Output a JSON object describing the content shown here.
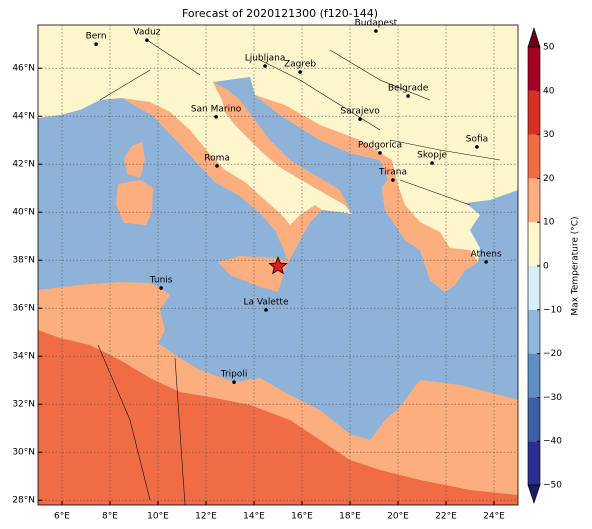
{
  "map": {
    "title": "Forecast of 2020121300 (f120-144)",
    "xlim": [
      5,
      25
    ],
    "ylim": [
      27.8,
      47.8
    ],
    "xticks": [
      {
        "value": 6,
        "label": "6°E"
      },
      {
        "value": 8,
        "label": "8°E"
      },
      {
        "value": 10,
        "label": "10°E"
      },
      {
        "value": 12,
        "label": "12°E"
      },
      {
        "value": 14,
        "label": "14°E"
      },
      {
        "value": 16,
        "label": "16°E"
      },
      {
        "value": 18,
        "label": "18°E"
      },
      {
        "value": 20,
        "label": "20°E"
      },
      {
        "value": 22,
        "label": "22°E"
      },
      {
        "value": 24,
        "label": "24°E"
      }
    ],
    "yticks": [
      {
        "value": 28,
        "label": "28°N"
      },
      {
        "value": 30,
        "label": "30°N"
      },
      {
        "value": 32,
        "label": "32°N"
      },
      {
        "value": 34,
        "label": "34°N"
      },
      {
        "value": 36,
        "label": "36°N"
      },
      {
        "value": 38,
        "label": "38°N"
      },
      {
        "value": 40,
        "label": "40°N"
      },
      {
        "value": 42,
        "label": "42°N"
      },
      {
        "value": 44,
        "label": "44°N"
      },
      {
        "value": 46,
        "label": "46°N"
      }
    ],
    "grid": true,
    "cities": [
      {
        "name": "Bern",
        "lon": 7.42,
        "lat": 47.0
      },
      {
        "name": "Vaduz",
        "lon": 9.54,
        "lat": 47.17
      },
      {
        "name": "Budapest",
        "lon": 19.08,
        "lat": 47.55
      },
      {
        "name": "Ljubljana",
        "lon": 14.46,
        "lat": 46.09
      },
      {
        "name": "Zagreb",
        "lon": 15.92,
        "lat": 45.84
      },
      {
        "name": "Belgrade",
        "lon": 20.42,
        "lat": 44.84
      },
      {
        "name": "San Marino",
        "lon": 12.42,
        "lat": 43.97
      },
      {
        "name": "Sarajevo",
        "lon": 18.42,
        "lat": 43.88
      },
      {
        "name": "Sofia",
        "lon": 23.29,
        "lat": 42.72
      },
      {
        "name": "Podgorica",
        "lon": 19.25,
        "lat": 42.47
      },
      {
        "name": "Skopje",
        "lon": 21.42,
        "lat": 42.05
      },
      {
        "name": "Roma",
        "lon": 12.46,
        "lat": 41.93
      },
      {
        "name": "Tirana",
        "lon": 19.79,
        "lat": 41.34
      },
      {
        "name": "Athens",
        "lon": 23.67,
        "lat": 37.93
      },
      {
        "name": "Tunis",
        "lon": 10.13,
        "lat": 36.84
      },
      {
        "name": "La Valette",
        "lon": 14.5,
        "lat": 35.93
      },
      {
        "name": "Tripoli",
        "lon": 13.17,
        "lat": 32.92
      }
    ],
    "marker": {
      "lon": 15.0,
      "lat": 37.75,
      "color": "#e41a1c"
    }
  },
  "colorbar": {
    "label": "Max Temperature (°C)",
    "lim": [
      -50,
      50
    ],
    "ticks": [
      {
        "value": -50,
        "label": "−50"
      },
      {
        "value": -40,
        "label": "−40"
      },
      {
        "value": -30,
        "label": "−30"
      },
      {
        "value": -20,
        "label": "−20"
      },
      {
        "value": -10,
        "label": "−10"
      },
      0,
      10,
      20,
      30,
      40,
      50
    ],
    "colors": [
      "#2c2f8f",
      "#3f5ea8",
      "#5f8fc2",
      "#8fb7d9",
      "#d6eef5",
      "#fdf8cc",
      "#fdae7e",
      "#f06c45",
      "#d73027",
      "#a50026"
    ],
    "under_color": "#1a1a6e",
    "over_color": "#6b0020"
  }
}
